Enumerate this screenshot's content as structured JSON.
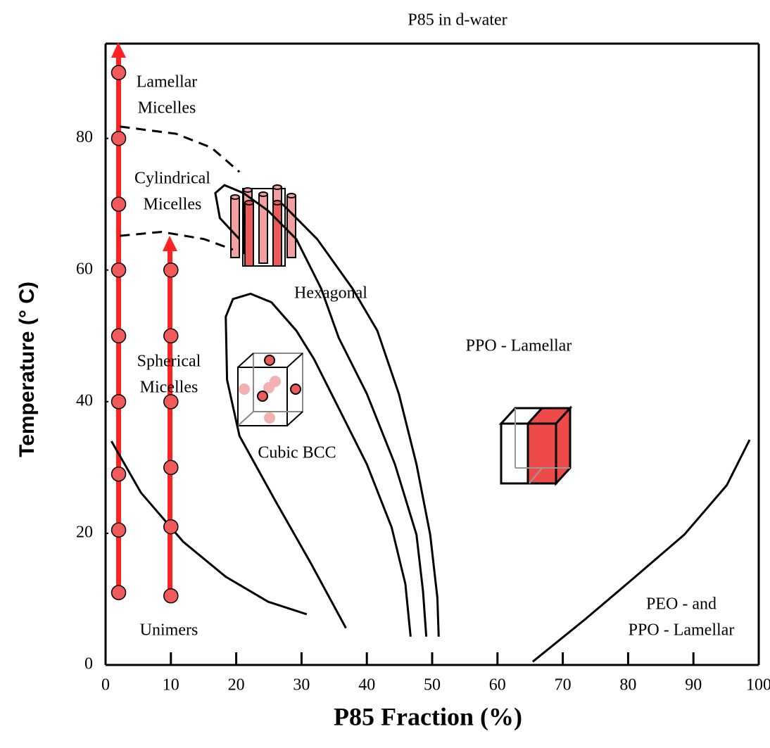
{
  "chart_data": {
    "type": "scatter",
    "title": "P85 in d-water",
    "x_label": "P85 Fraction (%)",
    "y_label": "Temperature (° C)",
    "xlim": [
      0,
      100
    ],
    "ylim": [
      0,
      94.4
    ],
    "xticks": [
      0,
      10,
      20,
      30,
      40,
      50,
      60,
      70,
      80,
      90,
      100
    ],
    "yticks": [
      0,
      20,
      40,
      60,
      80
    ],
    "series": [
      {
        "color": "#f05a5a",
        "x": [
          2,
          2,
          2,
          2,
          2,
          2,
          2,
          2,
          2
        ],
        "values": [
          90,
          80,
          70,
          60,
          50,
          40,
          29,
          20.5,
          11
        ]
      },
      {
        "color": "#f05a5a",
        "x": [
          10,
          10,
          10,
          10,
          10,
          10
        ],
        "values": [
          60,
          50,
          40,
          30,
          21,
          10.5
        ]
      }
    ],
    "boundaries": [
      {
        "dashed": true,
        "x": [
          2.2,
          10.8,
          16.2,
          20.5
        ],
        "y": [
          81.8,
          80.7,
          78.6,
          74.9
        ]
      },
      {
        "dashed": true,
        "x": [
          2.2,
          8.6,
          15.1,
          19.5
        ],
        "y": [
          65.2,
          65.8,
          64.7,
          63.1
        ]
      },
      {
        "dashed": false,
        "x": [
          0.9,
          5.4,
          11.9,
          18.4,
          24.9,
          30.8
        ],
        "y": [
          34,
          26.2,
          18.7,
          13.4,
          9.6,
          7.7
        ]
      },
      {
        "dashed": false,
        "x": [
          36.8,
          31.4,
          25.9,
          20.5,
          18.6,
          18.4,
          19.5,
          22.2,
          25.4,
          29.2,
          31.9,
          35.7,
          40,
          43.8,
          45.9,
          46.7
        ],
        "y": [
          5.6,
          15.5,
          25.1,
          34.8,
          43.3,
          52.9,
          55.6,
          56.4,
          55.1,
          50.8,
          46.5,
          39,
          30.5,
          20.9,
          12.3,
          4.3
        ]
      },
      {
        "dashed": false,
        "x": [
          20.5,
          17.5,
          16.8,
          18.2,
          21.1,
          24.9,
          29.2,
          33,
          35.7,
          40,
          44.3,
          47.6,
          48.6,
          49.1
        ],
        "y": [
          64.7,
          67.9,
          71.7,
          72.9,
          71.7,
          69,
          64.7,
          57.2,
          49.7,
          41.2,
          30.5,
          19.8,
          11.2,
          4.3
        ]
      },
      {
        "dashed": false,
        "x": [
          27,
          32.4,
          37.8,
          41.6,
          44.9,
          47.6,
          49.7,
          50.8,
          51
        ],
        "y": [
          70.1,
          64.7,
          57.2,
          50.8,
          41.2,
          30.5,
          19.8,
          10.2,
          4.3
        ]
      },
      {
        "dashed": false,
        "x": [
          65.4,
          73.5,
          81.1,
          88.6,
          95.1,
          98.6
        ],
        "y": [
          0.5,
          7,
          13.4,
          19.8,
          27.3,
          34.2
        ]
      }
    ],
    "regions": [
      [
        "Lamellar",
        "Micelles"
      ],
      [
        "Cylindrical",
        "Micelles"
      ],
      [
        "Hexagonal"
      ],
      [
        "PPO - Lamellar"
      ],
      [
        "Spherical",
        "Micelles"
      ],
      [
        "Cubic BCC"
      ],
      [
        "Unimers"
      ],
      [
        "PEO - and",
        "PPO - Lamellar"
      ]
    ]
  }
}
